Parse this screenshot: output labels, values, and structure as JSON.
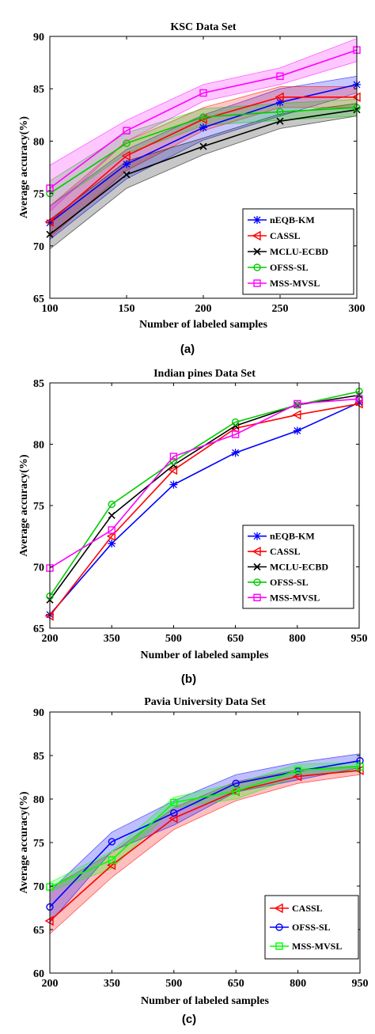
{
  "chart_data": [
    {
      "type": "line",
      "panel_label": "(a)",
      "title": "KSC Data Set",
      "xlabel": "Number of labeled samples",
      "ylabel": "Average accuracy(%)",
      "xlim": [
        100,
        300
      ],
      "ylim": [
        65,
        90
      ],
      "xticks": [
        100,
        150,
        200,
        250,
        300
      ],
      "yticks": [
        65,
        70,
        75,
        80,
        85,
        90
      ],
      "legend_position": "bottom-right",
      "x": [
        100,
        150,
        200,
        250,
        300
      ],
      "series": [
        {
          "name": "nEQB-KM",
          "color": "#0000ff",
          "marker": "asterisk",
          "values": [
            72.2,
            77.8,
            81.3,
            83.7,
            85.4
          ],
          "band": [
            [
              70.6,
              73.8
            ],
            [
              76.4,
              79.2
            ],
            [
              80.1,
              82.5
            ],
            [
              82.4,
              85.0
            ],
            [
              84.6,
              86.2
            ]
          ]
        },
        {
          "name": "CASSL",
          "color": "#ff0000",
          "marker": "triangle-left",
          "values": [
            72.3,
            78.6,
            82.1,
            84.2,
            84.2
          ],
          "band": [
            [
              70.8,
              73.8
            ],
            [
              77.2,
              80.0
            ],
            [
              81.0,
              83.2
            ],
            [
              83.2,
              85.2
            ],
            [
              83.2,
              85.2
            ]
          ]
        },
        {
          "name": "MCLU-ECBD",
          "color": "#000000",
          "marker": "x",
          "values": [
            71.1,
            76.8,
            79.5,
            81.9,
            83.0
          ],
          "band": [
            [
              69.7,
              72.5
            ],
            [
              75.5,
              78.1
            ],
            [
              78.7,
              80.3
            ],
            [
              81.2,
              82.6
            ],
            [
              82.4,
              83.6
            ]
          ]
        },
        {
          "name": "OFSS-SL",
          "color": "#00cc00",
          "marker": "circle",
          "values": [
            75.0,
            79.8,
            82.3,
            82.8,
            83.2
          ],
          "band": [
            [
              73.8,
              76.2
            ],
            [
              78.8,
              80.8
            ],
            [
              81.5,
              83.1
            ],
            [
              82.0,
              83.6
            ],
            [
              82.4,
              84.0
            ]
          ]
        },
        {
          "name": "MSS-MVSL",
          "color": "#ff00ff",
          "marker": "square",
          "values": [
            75.5,
            81.0,
            84.6,
            86.2,
            88.7
          ],
          "band": [
            [
              73.3,
              77.7
            ],
            [
              80.0,
              82.0
            ],
            [
              83.8,
              85.4
            ],
            [
              85.4,
              87.0
            ],
            [
              87.6,
              89.8
            ]
          ]
        }
      ]
    },
    {
      "type": "line",
      "panel_label": "(b)",
      "title": "Indian pines Data Set",
      "xlabel": "Number of labeled samples",
      "ylabel": "Average accuracy(%)",
      "xlim": [
        200,
        950
      ],
      "ylim": [
        65,
        85
      ],
      "xticks": [
        200,
        350,
        500,
        650,
        800,
        950
      ],
      "yticks": [
        65,
        70,
        75,
        80,
        85
      ],
      "legend_position": "bottom-right",
      "x": [
        200,
        350,
        500,
        650,
        800,
        950
      ],
      "series": [
        {
          "name": "nEQB-KM",
          "color": "#0000ff",
          "marker": "asterisk",
          "values": [
            66.1,
            71.9,
            76.7,
            79.3,
            81.1,
            83.4
          ]
        },
        {
          "name": "CASSL",
          "color": "#ff0000",
          "marker": "triangle-left",
          "values": [
            66.0,
            72.5,
            77.9,
            81.3,
            82.4,
            83.3
          ]
        },
        {
          "name": "MCLU-ECBD",
          "color": "#000000",
          "marker": "x",
          "values": [
            67.3,
            74.2,
            78.3,
            81.5,
            83.2,
            84.0
          ]
        },
        {
          "name": "OFSS-SL",
          "color": "#00cc00",
          "marker": "circle",
          "values": [
            67.6,
            75.1,
            78.6,
            81.8,
            83.2,
            84.3
          ]
        },
        {
          "name": "MSS-MVSL",
          "color": "#ff00ff",
          "marker": "square",
          "values": [
            69.9,
            73.0,
            79.0,
            80.8,
            83.3,
            83.7
          ]
        }
      ]
    },
    {
      "type": "line",
      "panel_label": "(c)",
      "title": "Pavia University Data Set",
      "xlabel": "Number of labeled samples",
      "ylabel": "Average accuracy(%)",
      "xlim": [
        200,
        950
      ],
      "ylim": [
        60,
        90
      ],
      "xticks": [
        200,
        350,
        500,
        650,
        800,
        950
      ],
      "yticks": [
        60,
        65,
        70,
        75,
        80,
        85,
        90
      ],
      "legend_position": "bottom-right",
      "x": [
        200,
        350,
        500,
        650,
        800,
        950
      ],
      "series": [
        {
          "name": "CASSL",
          "color": "#ff0000",
          "marker": "triangle-left",
          "values": [
            66.0,
            72.4,
            77.8,
            80.9,
            82.6,
            83.3
          ],
          "band": [
            [
              64.5,
              69.8
            ],
            [
              71.0,
              73.8
            ],
            [
              76.5,
              79.0
            ],
            [
              79.8,
              82.0
            ],
            [
              81.8,
              83.4
            ],
            [
              82.8,
              83.8
            ]
          ]
        },
        {
          "name": "OFSS-SL",
          "color": "#0000ff",
          "marker": "circle",
          "values": [
            67.6,
            75.1,
            78.4,
            81.8,
            83.2,
            84.4
          ],
          "band": [
            [
              65.8,
              69.4
            ],
            [
              74.0,
              76.2
            ],
            [
              77.0,
              79.8
            ],
            [
              80.8,
              82.8
            ],
            [
              82.2,
              84.2
            ],
            [
              83.6,
              85.2
            ]
          ]
        },
        {
          "name": "MSS-MVSL",
          "color": "#00ff00",
          "marker": "square",
          "values": [
            69.9,
            73.0,
            79.6,
            80.9,
            83.3,
            83.7
          ],
          "band": [
            [
              69.4,
              70.4
            ],
            [
              72.0,
              74.0
            ],
            [
              79.0,
              80.2
            ],
            [
              80.0,
              81.8
            ],
            [
              82.6,
              84.0
            ],
            [
              83.2,
              84.2
            ]
          ]
        }
      ]
    }
  ]
}
